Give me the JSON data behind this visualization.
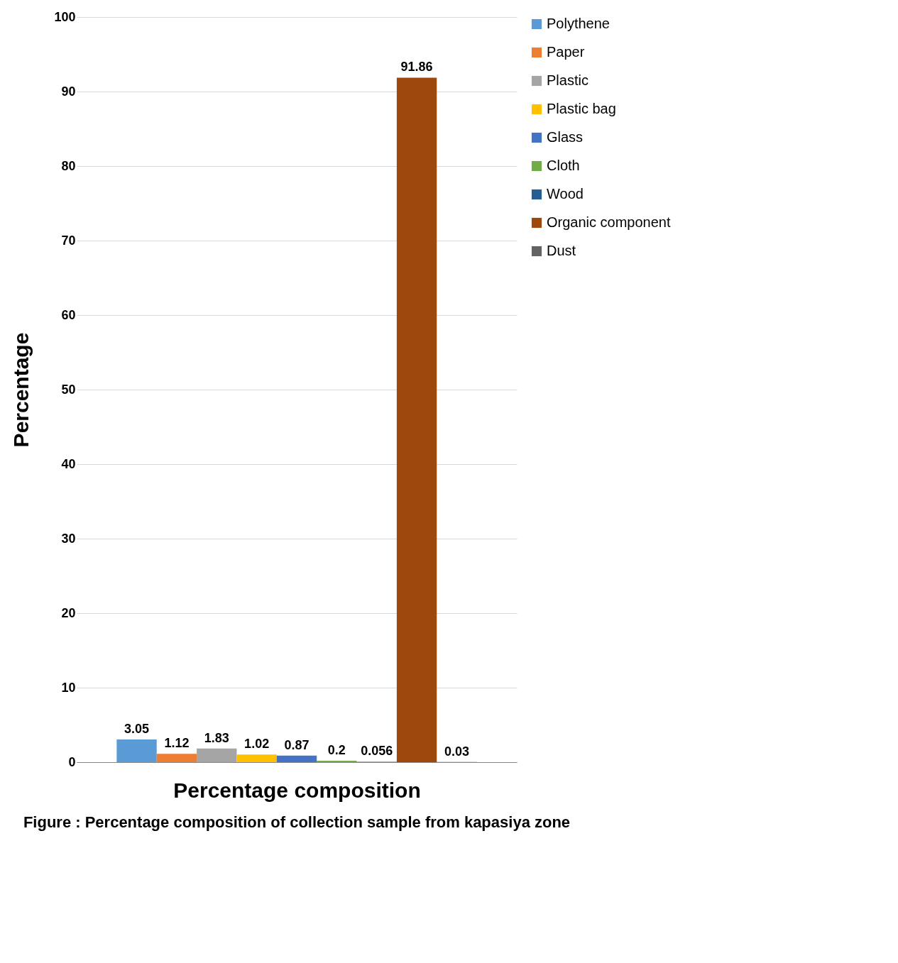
{
  "chart_data": {
    "type": "bar",
    "xlabel": "Percentage composition",
    "ylabel": "Percentage",
    "annotations": [
      "Figure : Percentage composition of collection sample from kapasiya zone"
    ],
    "categories": [
      null
    ],
    "series": [
      {
        "name": "Polythene",
        "color": "#5b9bd5",
        "values": [
          3.05
        ]
      },
      {
        "name": "Paper",
        "color": "#ed7d31",
        "values": [
          1.12
        ]
      },
      {
        "name": "Plastic",
        "color": "#a5a5a5",
        "values": [
          1.83
        ]
      },
      {
        "name": "Plastic bag",
        "color": "#ffc000",
        "values": [
          1.02
        ]
      },
      {
        "name": "Glass",
        "color": "#4472c4",
        "values": [
          0.87
        ]
      },
      {
        "name": "Cloth",
        "color": "#70ad47",
        "values": [
          0.2
        ]
      },
      {
        "name": "Wood",
        "color": "#255e91",
        "values": [
          0.056
        ]
      },
      {
        "name": "Organic component",
        "color": "#9e480e",
        "values": [
          91.86
        ]
      },
      {
        "name": "Dust",
        "color": "#636363",
        "values": [
          0.03
        ]
      }
    ],
    "ylim": [
      0,
      100
    ],
    "yticks": [
      0,
      10,
      20,
      30,
      40,
      50,
      60,
      70,
      80,
      90,
      100
    ],
    "grid": "y",
    "legend": "right",
    "data_labels": true
  }
}
